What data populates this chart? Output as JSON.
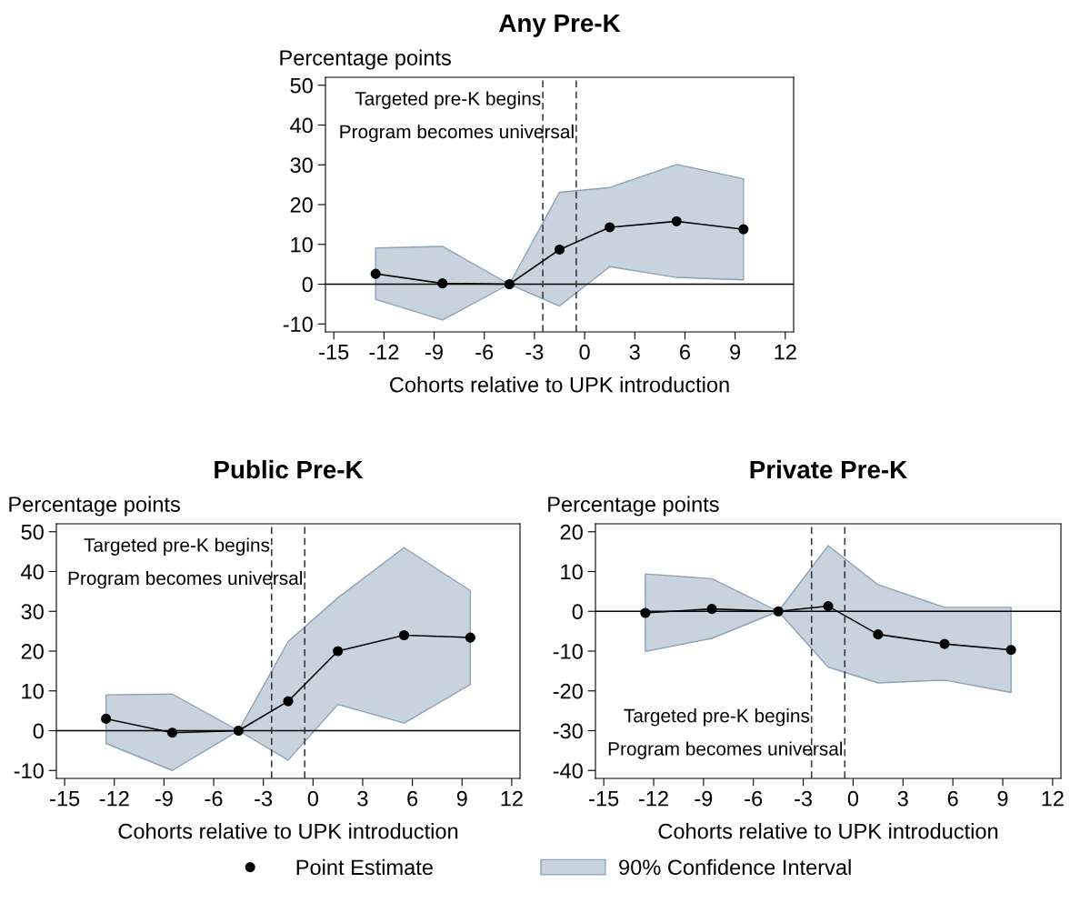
{
  "chart_data": [
    {
      "type": "line",
      "title": "Any Pre-K",
      "ylabel": "Percentage points",
      "xlabel": "Cohorts relative to UPK introduction",
      "x": [
        -12.5,
        -8.5,
        -4.5,
        -1.5,
        1.5,
        5.5,
        9.5
      ],
      "series": [
        {
          "color": "#000000",
          "values": [
            2.6,
            0.2,
            0,
            8.7,
            14.3,
            15.8,
            13.8
          ],
          "lower": [
            -3.8,
            -9.0,
            0,
            -5.5,
            4.4,
            1.7,
            1.1
          ],
          "upper": [
            9.1,
            9.5,
            0,
            23.1,
            24.3,
            30.1,
            26.5
          ]
        }
      ],
      "marker": "circle",
      "xlim": [
        -15.5,
        12.5
      ],
      "xticks": [
        -15,
        -12,
        -9,
        -6,
        -3,
        0,
        3,
        6,
        9,
        12
      ],
      "ylim": [
        -12,
        52
      ],
      "yticks": [
        -10,
        0,
        10,
        20,
        30,
        40,
        50
      ],
      "ref_lines": [
        {
          "axis": "y",
          "value": 0,
          "color": "#000000",
          "line_style": "solid"
        },
        {
          "axis": "x",
          "value": -2.5,
          "label": "Targeted pre-K begins",
          "color": "#333333",
          "line_style": "dashed"
        },
        {
          "axis": "x",
          "value": -0.5,
          "label": "Program becomes universal",
          "color": "#333333",
          "line_style": "dashed"
        }
      ]
    },
    {
      "type": "line",
      "title": "Public Pre-K",
      "ylabel": "Percentage points",
      "xlabel": "Cohorts relative to UPK introduction",
      "x": [
        -12.5,
        -8.5,
        -4.5,
        -1.5,
        1.5,
        5.5,
        9.5
      ],
      "series": [
        {
          "color": "#000000",
          "values": [
            3.0,
            -0.5,
            0,
            7.4,
            20.0,
            24.0,
            23.4
          ],
          "lower": [
            -3.2,
            -10.0,
            0,
            -7.4,
            6.6,
            1.9,
            11.6
          ],
          "upper": [
            9.0,
            9.2,
            0,
            22.4,
            33.4,
            46.0,
            35.2
          ]
        }
      ],
      "marker": "circle",
      "xlim": [
        -15.5,
        12.5
      ],
      "xticks": [
        -15,
        -12,
        -9,
        -6,
        -3,
        0,
        3,
        6,
        9,
        12
      ],
      "ylim": [
        -12,
        52
      ],
      "yticks": [
        -10,
        0,
        10,
        20,
        30,
        40,
        50
      ],
      "ref_lines": [
        {
          "axis": "y",
          "value": 0,
          "color": "#000000",
          "line_style": "solid"
        },
        {
          "axis": "x",
          "value": -2.5,
          "label": "Targeted pre-K begins",
          "color": "#333333",
          "line_style": "dashed"
        },
        {
          "axis": "x",
          "value": -0.5,
          "label": "Program becomes universal",
          "color": "#333333",
          "line_style": "dashed"
        }
      ]
    },
    {
      "type": "line",
      "title": "Private Pre-K",
      "ylabel": "Percentage points",
      "xlabel": "Cohorts relative to UPK introduction",
      "x": [
        -12.5,
        -8.5,
        -4.5,
        -1.5,
        1.5,
        5.5,
        9.5
      ],
      "series": [
        {
          "name": "Point Estimate",
          "color": "#000000",
          "values": [
            -0.4,
            0.6,
            0,
            1.3,
            -5.8,
            -8.2,
            -9.7
          ],
          "lower": [
            -10.1,
            -6.8,
            0,
            -14.0,
            -18.0,
            -17.3,
            -20.4
          ],
          "upper": [
            9.4,
            8.2,
            0,
            16.5,
            6.7,
            1.0,
            1.0
          ]
        }
      ],
      "marker": "circle",
      "xlim": [
        -15.5,
        12.5
      ],
      "xticks": [
        -15,
        -12,
        -9,
        -6,
        -3,
        0,
        3,
        6,
        9,
        12
      ],
      "ylim": [
        -42,
        22
      ],
      "yticks": [
        -40,
        -30,
        -20,
        -10,
        0,
        10,
        20
      ],
      "legend": "bottom",
      "annotations": [
        "90% Confidence Interval"
      ],
      "ref_lines": [
        {
          "axis": "y",
          "value": 0,
          "color": "#000000",
          "line_style": "solid"
        },
        {
          "axis": "x",
          "value": -2.5,
          "label": "Targeted pre-K begins",
          "color": "#333333",
          "line_style": "dashed"
        },
        {
          "axis": "x",
          "value": -0.5,
          "label": "Program becomes universal",
          "color": "#333333",
          "line_style": "dashed"
        }
      ]
    }
  ]
}
